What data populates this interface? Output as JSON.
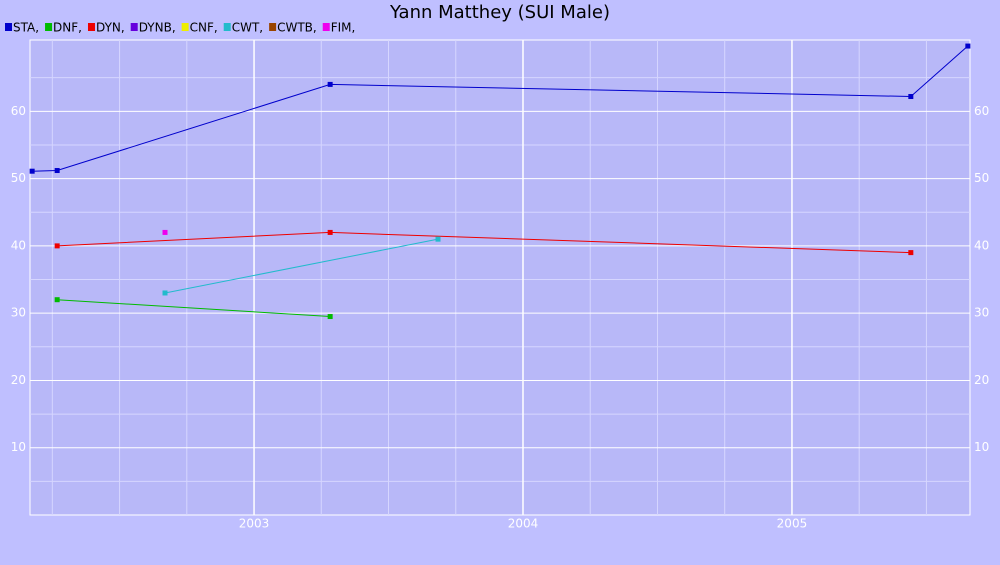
{
  "chart_data": {
    "type": "line",
    "title": "Yann Matthey (SUI Male)",
    "xlim": [
      2002.167,
      2005.662
    ],
    "xticks": [
      2003,
      2004,
      2005
    ],
    "xminorticks": [
      2002.25,
      2002.5,
      2002.75,
      2003.25,
      2003.5,
      2003.75,
      2004.25,
      2004.5,
      2004.75,
      2005.25,
      2005.5
    ],
    "ylim": [
      0,
      70.6
    ],
    "yticks": [
      10,
      20,
      30,
      40,
      50,
      60
    ],
    "yminorticks": [
      5,
      15,
      25,
      35,
      45,
      55,
      65
    ],
    "grid": true,
    "legend": "top-left",
    "series": [
      {
        "name": "STA,",
        "color": "#0000cc",
        "x": [
          2002.175,
          2002.268,
          2003.283,
          2005.442,
          2005.654
        ],
        "values": [
          51.1,
          51.2,
          64,
          62.2,
          69.7
        ]
      },
      {
        "name": "DNF,",
        "color": "#00bb00",
        "x": [
          2002.268,
          2003.283
        ],
        "values": [
          32,
          29.5
        ]
      },
      {
        "name": "DYN,",
        "color": "#ee0000",
        "x": [
          2002.268,
          2003.283,
          2005.442
        ],
        "values": [
          40,
          42,
          39
        ]
      },
      {
        "name": "DYNB,",
        "color": "#6600dd",
        "x": [],
        "values": []
      },
      {
        "name": "CNF,",
        "color": "#eeee00",
        "x": [],
        "values": []
      },
      {
        "name": "CWT,",
        "color": "#22bbcc",
        "x": [
          2002.669,
          2003.684
        ],
        "values": [
          33,
          41
        ]
      },
      {
        "name": "CWTB,",
        "color": "#994400",
        "x": [],
        "values": []
      },
      {
        "name": "FIM,",
        "color": "#ee00ee",
        "x": [
          2002.669
        ],
        "values": [
          42
        ]
      }
    ]
  }
}
